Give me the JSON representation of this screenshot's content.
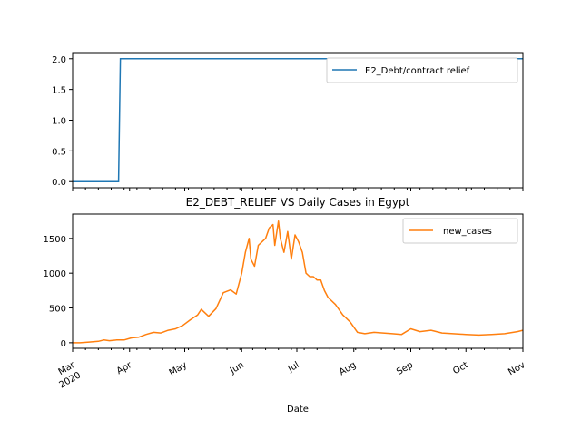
{
  "chart_data": [
    {
      "type": "line",
      "title": "",
      "xlabel": "",
      "ylabel": "",
      "ylim": [
        -0.1,
        2.1
      ],
      "y_ticks": [
        "0.0",
        "0.5",
        "1.0",
        "1.5",
        "2.0"
      ],
      "legend": {
        "placement": "top-right",
        "entries": [
          "E2_Debt/contract relief"
        ]
      },
      "grid": false,
      "color": "#1f77b4",
      "series": [
        {
          "name": "E2_Debt/contract relief",
          "x": [
            "2020-03-01",
            "2020-03-26",
            "2020-03-27",
            "2020-11-01"
          ],
          "values": [
            0,
            0,
            2,
            2
          ]
        }
      ]
    },
    {
      "type": "line",
      "title": "E2_DEBT_RELIEF VS Daily Cases in Egypt",
      "xlabel": "Date",
      "ylabel": "",
      "ylim": [
        -80,
        1850
      ],
      "y_ticks": [
        "0",
        "500",
        "1000",
        "1500"
      ],
      "x_tick_labels": [
        "Mar\n2020",
        "Apr",
        "May",
        "Jun",
        "Jul",
        "Aug",
        "Sep",
        "Oct",
        "Nov"
      ],
      "legend": {
        "placement": "top-right",
        "entries": [
          "new_cases"
        ]
      },
      "grid": false,
      "color": "#ff7f0e",
      "series": [
        {
          "name": "new_cases",
          "x": [
            "2020-03-01",
            "2020-03-05",
            "2020-03-10",
            "2020-03-15",
            "2020-03-18",
            "2020-03-21",
            "2020-03-25",
            "2020-03-29",
            "2020-04-02",
            "2020-04-06",
            "2020-04-10",
            "2020-04-14",
            "2020-04-18",
            "2020-04-22",
            "2020-04-26",
            "2020-04-30",
            "2020-05-04",
            "2020-05-08",
            "2020-05-10",
            "2020-05-14",
            "2020-05-18",
            "2020-05-22",
            "2020-05-26",
            "2020-05-29",
            "2020-06-01",
            "2020-06-03",
            "2020-06-05",
            "2020-06-06",
            "2020-06-08",
            "2020-06-10",
            "2020-06-12",
            "2020-06-14",
            "2020-06-16",
            "2020-06-18",
            "2020-06-19",
            "2020-06-21",
            "2020-06-22",
            "2020-06-24",
            "2020-06-26",
            "2020-06-28",
            "2020-06-30",
            "2020-07-02",
            "2020-07-04",
            "2020-07-06",
            "2020-07-08",
            "2020-07-10",
            "2020-07-12",
            "2020-07-14",
            "2020-07-16",
            "2020-07-18",
            "2020-07-22",
            "2020-07-26",
            "2020-07-30",
            "2020-08-03",
            "2020-08-07",
            "2020-08-12",
            "2020-08-17",
            "2020-08-22",
            "2020-08-27",
            "2020-09-01",
            "2020-09-06",
            "2020-09-12",
            "2020-09-18",
            "2020-09-24",
            "2020-10-01",
            "2020-10-08",
            "2020-10-15",
            "2020-10-22",
            "2020-10-29",
            "2020-11-01"
          ],
          "values": [
            0,
            0,
            10,
            20,
            40,
            30,
            40,
            40,
            70,
            80,
            120,
            150,
            140,
            180,
            200,
            250,
            330,
            400,
            480,
            380,
            490,
            720,
            760,
            700,
            1000,
            1300,
            1500,
            1200,
            1100,
            1400,
            1450,
            1500,
            1650,
            1700,
            1400,
            1750,
            1500,
            1300,
            1600,
            1200,
            1550,
            1450,
            1300,
            1000,
            950,
            950,
            900,
            900,
            750,
            650,
            550,
            400,
            300,
            150,
            130,
            150,
            140,
            130,
            120,
            200,
            160,
            180,
            140,
            130,
            120,
            110,
            120,
            130,
            160,
            180
          ]
        }
      ]
    }
  ]
}
